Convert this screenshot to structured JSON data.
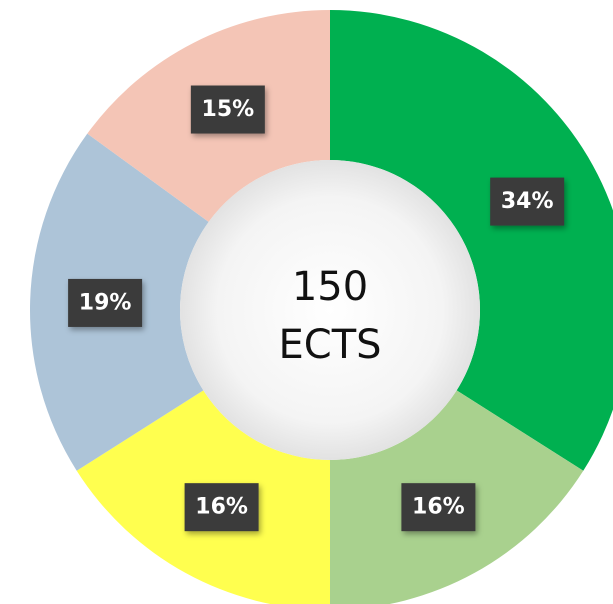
{
  "chart_data": {
    "type": "donut",
    "categories": [
      null,
      null,
      null,
      null,
      null
    ],
    "values": [
      34,
      16,
      16,
      19,
      15
    ],
    "value_labels": [
      "34%",
      "16%",
      "16%",
      "19%",
      "15%"
    ],
    "colors": [
      "#00b050",
      "#a9d18e",
      "#ffff4f",
      "#adc4d8",
      "#f4c5b6"
    ],
    "center_text": [
      "150",
      "ECTS"
    ]
  }
}
